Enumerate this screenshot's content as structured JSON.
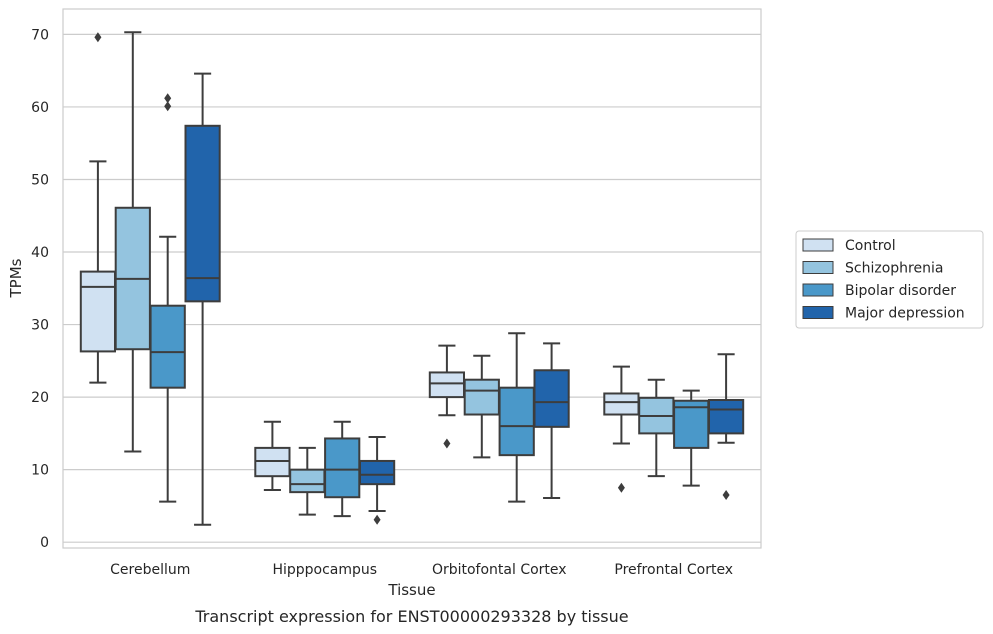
{
  "chart_data": {
    "type": "box",
    "caption": "Transcript expression for ENST00000293328 by tissue",
    "xlabel": "Tissue",
    "ylabel": "TPMs",
    "ylim": [
      -0.8,
      73.5
    ],
    "yticks": [
      0,
      10,
      20,
      30,
      40,
      50,
      60,
      70
    ],
    "grid": true,
    "legend_position": "right",
    "categories": [
      "Cerebellum",
      "Hipppocampus",
      "Orbitofontal Cortex",
      "Prefrontal Cortex"
    ],
    "series": [
      {
        "name": "Control",
        "color": "#d0e1f2",
        "boxes": [
          {
            "whisker_low": 22.0,
            "q1": 26.3,
            "median": 35.2,
            "q3": 37.3,
            "whisker_high": 52.5,
            "outliers": [
              69.6
            ]
          },
          {
            "whisker_low": 7.2,
            "q1": 9.1,
            "median": 11.2,
            "q3": 13.0,
            "whisker_high": 16.6,
            "outliers": []
          },
          {
            "whisker_low": 17.5,
            "q1": 20.0,
            "median": 21.9,
            "q3": 23.4,
            "whisker_high": 27.1,
            "outliers": [
              13.6
            ]
          },
          {
            "whisker_low": 13.6,
            "q1": 17.6,
            "median": 19.3,
            "q3": 20.5,
            "whisker_high": 24.2,
            "outliers": [
              7.5
            ]
          }
        ]
      },
      {
        "name": "Schizophrenia",
        "color": "#94c4df",
        "boxes": [
          {
            "whisker_low": 12.5,
            "q1": 26.6,
            "median": 36.3,
            "q3": 46.1,
            "whisker_high": 70.3,
            "outliers": []
          },
          {
            "whisker_low": 3.8,
            "q1": 6.9,
            "median": 8.0,
            "q3": 10.0,
            "whisker_high": 13.0,
            "outliers": []
          },
          {
            "whisker_low": 11.7,
            "q1": 17.6,
            "median": 20.9,
            "q3": 22.4,
            "whisker_high": 25.7,
            "outliers": []
          },
          {
            "whisker_low": 9.1,
            "q1": 15.0,
            "median": 17.4,
            "q3": 19.9,
            "whisker_high": 22.4,
            "outliers": []
          }
        ]
      },
      {
        "name": "Bipolar disorder",
        "color": "#4a98c9",
        "boxes": [
          {
            "whisker_low": 5.6,
            "q1": 21.3,
            "median": 26.2,
            "q3": 32.6,
            "whisker_high": 42.1,
            "outliers": [
              60.1,
              61.2
            ]
          },
          {
            "whisker_low": 3.6,
            "q1": 6.2,
            "median": 10.0,
            "q3": 14.3,
            "whisker_high": 16.6,
            "outliers": []
          },
          {
            "whisker_low": 5.6,
            "q1": 12.0,
            "median": 16.0,
            "q3": 21.3,
            "whisker_high": 28.8,
            "outliers": []
          },
          {
            "whisker_low": 7.8,
            "q1": 13.0,
            "median": 18.6,
            "q3": 19.5,
            "whisker_high": 20.9,
            "outliers": []
          }
        ]
      },
      {
        "name": "Major depression",
        "color": "#2164ab",
        "boxes": [
          {
            "whisker_low": 2.4,
            "q1": 33.2,
            "median": 36.4,
            "q3": 57.4,
            "whisker_high": 64.6,
            "outliers": []
          },
          {
            "whisker_low": 4.3,
            "q1": 8.0,
            "median": 9.3,
            "q3": 11.2,
            "whisker_high": 14.5,
            "outliers": [
              3.1
            ]
          },
          {
            "whisker_low": 6.1,
            "q1": 15.9,
            "median": 19.3,
            "q3": 23.7,
            "whisker_high": 27.4,
            "outliers": []
          },
          {
            "whisker_low": 13.7,
            "q1": 15.0,
            "median": 18.3,
            "q3": 19.6,
            "whisker_high": 25.9,
            "outliers": [
              6.5
            ]
          }
        ]
      }
    ]
  }
}
